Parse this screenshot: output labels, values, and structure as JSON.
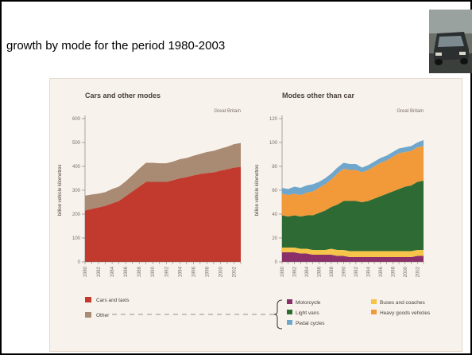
{
  "slide": {
    "title": "growth by mode for the period 1980-2003"
  },
  "colors": {
    "cars": "#c23a2e",
    "other": "#a98a72",
    "motorcycle": "#8b2f6b",
    "light_vans": "#2e6b34",
    "pedal_cycles": "#6fa6cc",
    "buses": "#f6c44a",
    "hgv": "#f29a3a",
    "panel_bg": "#f7f2ec",
    "axis_text": "#7a6e66"
  },
  "chart_data": [
    {
      "type": "area",
      "stacked": true,
      "title": "Cars and other modes",
      "subtitle": "Great Britain",
      "ylabel": "billion vehicle kilometres",
      "ylim": [
        0,
        600
      ],
      "yticks": [
        "0",
        "100",
        "200",
        "300",
        "400",
        "500",
        "600"
      ],
      "x": [
        "1980",
        "1981",
        "1982",
        "1983",
        "1984",
        "1985",
        "1986",
        "1987",
        "1988",
        "1989",
        "1990",
        "1991",
        "1992",
        "1993",
        "1994",
        "1995",
        "1996",
        "1997",
        "1998",
        "1999",
        "2000",
        "2001",
        "2002",
        "2003"
      ],
      "xtick_labels": [
        "1980",
        "1982",
        "1984",
        "1986",
        "1988",
        "1990",
        "1992",
        "1994",
        "1996",
        "1998",
        "2000",
        "2002"
      ],
      "series": [
        {
          "name": "Cars and taxis",
          "values": [
            215,
            222,
            228,
            235,
            245,
            255,
            275,
            295,
            315,
            335,
            335,
            335,
            335,
            342,
            350,
            355,
            362,
            368,
            372,
            375,
            382,
            388,
            395,
            398
          ]
        },
        {
          "name": "Other",
          "values": [
            62,
            60,
            58,
            57,
            60,
            60,
            62,
            68,
            75,
            80,
            80,
            78,
            78,
            78,
            80,
            80,
            82,
            84,
            88,
            90,
            92,
            94,
            98,
            100
          ]
        }
      ]
    },
    {
      "type": "area",
      "stacked": true,
      "title": "Modes other than car",
      "subtitle": "Great Britain",
      "ylabel": "billion vehicle kilometres",
      "ylim": [
        0,
        120
      ],
      "yticks": [
        "0",
        "20",
        "40",
        "60",
        "80",
        "100",
        "120"
      ],
      "x": [
        "1980",
        "1981",
        "1982",
        "1983",
        "1984",
        "1985",
        "1986",
        "1987",
        "1988",
        "1989",
        "1990",
        "1991",
        "1992",
        "1993",
        "1994",
        "1995",
        "1996",
        "1997",
        "1998",
        "1999",
        "2000",
        "2001",
        "2002",
        "2003"
      ],
      "xtick_labels": [
        "1980",
        "1982",
        "1984",
        "1986",
        "1988",
        "1990",
        "1992",
        "1994",
        "1996",
        "1998",
        "2000",
        "2002"
      ],
      "series": [
        {
          "name": "Motorcycle",
          "values": [
            8,
            8,
            8,
            7,
            7,
            6,
            6,
            6,
            6,
            5,
            5,
            4,
            4,
            4,
            4,
            4,
            4,
            4,
            4,
            4,
            4,
            4,
            5,
            5
          ]
        },
        {
          "name": "Buses and coaches",
          "values": [
            4,
            4,
            4,
            4,
            4,
            4,
            4,
            4,
            5,
            5,
            5,
            5,
            5,
            5,
            5,
            5,
            5,
            5,
            5,
            5,
            5,
            5,
            5,
            5
          ]
        },
        {
          "name": "Light vans",
          "values": [
            27,
            26,
            27,
            27,
            28,
            29,
            31,
            33,
            35,
            38,
            41,
            42,
            42,
            41,
            42,
            44,
            46,
            48,
            50,
            52,
            54,
            55,
            57,
            58
          ]
        },
        {
          "name": "Heavy goods vehicles",
          "values": [
            18,
            18,
            18,
            18,
            19,
            20,
            21,
            22,
            23,
            26,
            27,
            26,
            26,
            25,
            26,
            27,
            28,
            28,
            29,
            30,
            29,
            29,
            29,
            29
          ]
        },
        {
          "name": "Pedal cycles",
          "values": [
            5,
            5,
            6,
            6,
            6,
            6,
            5,
            5,
            5,
            5,
            5,
            5,
            5,
            4,
            4,
            4,
            4,
            4,
            4,
            4,
            4,
            4,
            4,
            5
          ]
        }
      ]
    }
  ],
  "legend": {
    "left": [
      {
        "label": "Cars and taxis",
        "color": "#c23a2e"
      },
      {
        "label": "Other",
        "color": "#a98a72"
      }
    ],
    "right": [
      {
        "label": "Motorcycle",
        "color": "#8b2f6b"
      },
      {
        "label": "Buses and coaches",
        "color": "#f6c44a"
      },
      {
        "label": "Light vans",
        "color": "#2e6b34"
      },
      {
        "label": "Heavy goods vehicles",
        "color": "#f29a3a"
      },
      {
        "label": "Pedal cycles",
        "color": "#6fa6cc"
      }
    ]
  }
}
